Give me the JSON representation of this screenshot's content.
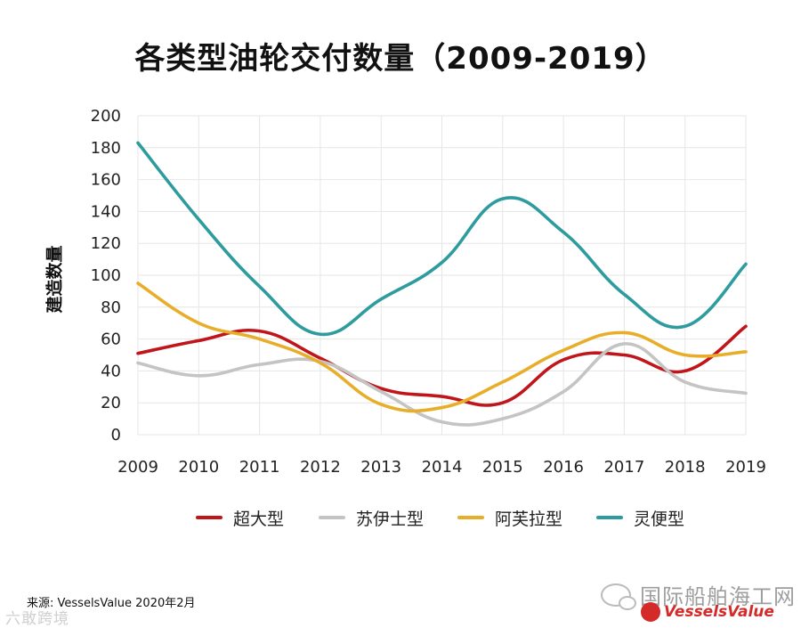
{
  "chart_data": {
    "type": "line",
    "title": "各类型油轮交付数量（2009-2019）",
    "xlabel": "",
    "ylabel": "建造数量",
    "ylim": [
      0,
      200
    ],
    "yticks": [
      0,
      20,
      40,
      60,
      80,
      100,
      120,
      140,
      160,
      180,
      200
    ],
    "categories": [
      "2009",
      "2010",
      "2011",
      "2012",
      "2013",
      "2014",
      "2015",
      "2016",
      "2017",
      "2018",
      "2019"
    ],
    "grid": true,
    "legend_position": "bottom",
    "series": [
      {
        "name": "超大型",
        "color": "#c0161b",
        "values": [
          51,
          59,
          65,
          48,
          29,
          24,
          20,
          47,
          50,
          40,
          68
        ]
      },
      {
        "name": "苏伊士型",
        "color": "#c4c4c4",
        "values": [
          45,
          37,
          44,
          46,
          27,
          8,
          10,
          27,
          57,
          33,
          26
        ]
      },
      {
        "name": "阿芙拉型",
        "color": "#e8ae2a",
        "values": [
          95,
          70,
          60,
          45,
          19,
          17,
          33,
          53,
          64,
          50,
          52
        ]
      },
      {
        "name": "灵便型",
        "color": "#2e9c9e",
        "values": [
          183,
          135,
          93,
          63,
          85,
          108,
          148,
          127,
          88,
          68,
          107
        ]
      }
    ]
  },
  "source_text": "来源: VesselsValue 2020年2月",
  "watermark_left": "六敢跨境",
  "watermark_right": "国际船舶海工网",
  "logo_text": "VesselsValue"
}
